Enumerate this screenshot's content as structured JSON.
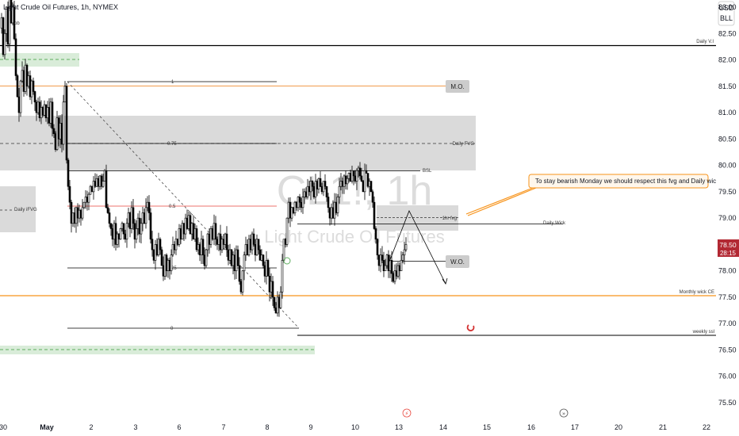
{
  "header": {
    "symbol_title": "Light Crude Oil Futures, 1h, NYMEX"
  },
  "watermark": {
    "ticker": "CL1!, 1h",
    "name": "Light Crude Oil Futures"
  },
  "currency": {
    "line1": "USD",
    "line2": "BLL"
  },
  "price_tag": {
    "price": "78.50",
    "countdown": "28:15",
    "color": "#b22833"
  },
  "colors": {
    "bull": "#ffffff",
    "bear": "#000000",
    "orange": "#f7931a",
    "red": "#e8453c",
    "fvg_gray": "#d4d4d4",
    "green_zone": "#cfe8cf"
  },
  "annotations": {
    "daily_vi": "Daily V.I",
    "mo": "M.O.",
    "daily_fvg": "Daily FVG",
    "bsl": "BSL",
    "daily_ifvg": "Daily iFVG",
    "fvg_1hr": "1hr fvg",
    "daily_wick": "Daily Wick",
    "wo": "W.O.",
    "monthly_wick_ce": "Monthly wick CE",
    "weekly_ssl": "weekly ssl",
    "fib_1": "1",
    "fib_075": "0.75",
    "fib_05": "0.5",
    "fib_025": "0.25",
    "fib_0": "0",
    "top_label": "-ob",
    "note": "To stay bearish Monday we should respect this fvg and Daily wick"
  },
  "chart_data": {
    "type": "candlestick",
    "title": "Light Crude Oil Futures, 1h, NYMEX",
    "y_ticks": [
      "83.00",
      "82.50",
      "82.00",
      "81.50",
      "81.00",
      "80.50",
      "80.00",
      "79.50",
      "79.00",
      "78.50",
      "78.00",
      "77.50",
      "77.00",
      "76.50",
      "76.00",
      "75.50"
    ],
    "x_ticks": [
      "30",
      "May",
      "2",
      "3",
      "6",
      "7",
      "8",
      "9",
      "10",
      "13",
      "14",
      "15",
      "16",
      "17",
      "20",
      "21",
      "22"
    ],
    "ylim": [
      75.3,
      83.3
    ],
    "levels": {
      "daily_vi": 82.27,
      "mo": 81.47,
      "daily_fvg_top": 80.95,
      "daily_fvg_mid": 80.43,
      "daily_fvg_bottom": 79.92,
      "bsl": 79.92,
      "fvg_1hr_top": 79.18,
      "fvg_1hr_mid": 79.03,
      "fvg_1hr_bottom": 78.88,
      "daily_wick": 78.88,
      "wo": 78.15,
      "monthly_wick_ce": 77.53,
      "weekly_ssl": 76.86,
      "fib_1": 81.56,
      "fib_075": 80.4,
      "fib_05": 79.24,
      "fib_025": 78.09,
      "fib_0": 76.93,
      "current_price": 78.5
    },
    "path": [
      [
        0,
        82.6
      ],
      [
        2,
        82.8
      ],
      [
        4,
        82.1
      ],
      [
        6,
        82.5
      ],
      [
        8,
        83.0
      ],
      [
        10,
        82.3
      ],
      [
        12,
        83.2
      ],
      [
        14,
        82.7
      ],
      [
        16,
        83.0
      ],
      [
        18,
        82.4
      ],
      [
        20,
        81.7
      ],
      [
        22,
        81.3
      ],
      [
        24,
        81.0
      ],
      [
        26,
        81.6
      ],
      [
        28,
        81.8
      ],
      [
        30,
        81.4
      ],
      [
        32,
        81.9
      ],
      [
        34,
        81.5
      ],
      [
        36,
        81.7
      ],
      [
        38,
        81.3
      ],
      [
        40,
        81.6
      ],
      [
        42,
        81.4
      ],
      [
        44,
        81.2
      ],
      [
        46,
        81.0
      ],
      [
        48,
        81.2
      ],
      [
        50,
        80.9
      ],
      [
        52,
        81.1
      ],
      [
        54,
        80.95
      ],
      [
        56,
        81.15
      ],
      [
        58,
        80.9
      ],
      [
        60,
        81.1
      ],
      [
        62,
        80.8
      ],
      [
        64,
        81.2
      ],
      [
        66,
        80.7
      ],
      [
        68,
        80.6
      ],
      [
        70,
        80.3
      ],
      [
        72,
        80.9
      ],
      [
        74,
        80.5
      ],
      [
        76,
        80.8
      ],
      [
        78,
        80.4
      ],
      [
        80,
        81.2
      ],
      [
        82,
        81.5
      ],
      [
        84,
        80.1
      ],
      [
        86,
        79.6
      ],
      [
        88,
        79.3
      ],
      [
        90,
        78.9
      ],
      [
        92,
        79.1
      ],
      [
        94,
        78.9
      ],
      [
        96,
        79.2
      ],
      [
        98,
        79.0
      ],
      [
        100,
        79.15
      ],
      [
        102,
        79.0
      ],
      [
        104,
        79.2
      ],
      [
        106,
        79.3
      ],
      [
        108,
        79.4
      ],
      [
        110,
        79.3
      ],
      [
        112,
        79.45
      ],
      [
        114,
        79.6
      ],
      [
        116,
        79.5
      ],
      [
        118,
        79.7
      ],
      [
        120,
        79.6
      ],
      [
        122,
        79.75
      ],
      [
        124,
        79.6
      ],
      [
        126,
        79.8
      ],
      [
        128,
        79.6
      ],
      [
        130,
        79.7
      ],
      [
        132,
        79.9
      ],
      [
        134,
        79.2
      ],
      [
        136,
        79.1
      ],
      [
        138,
        78.9
      ],
      [
        140,
        78.8
      ],
      [
        142,
        78.6
      ],
      [
        144,
        78.9
      ],
      [
        146,
        78.5
      ],
      [
        148,
        78.7
      ],
      [
        150,
        78.6
      ],
      [
        152,
        78.8
      ],
      [
        154,
        78.9
      ],
      [
        156,
        78.7
      ],
      [
        158,
        78.6
      ],
      [
        160,
        78.9
      ],
      [
        162,
        79.1
      ],
      [
        164,
        78.8
      ],
      [
        166,
        79.2
      ],
      [
        168,
        78.9
      ],
      [
        170,
        78.6
      ],
      [
        172,
        78.8
      ],
      [
        174,
        79.0
      ],
      [
        176,
        78.7
      ],
      [
        178,
        78.9
      ],
      [
        180,
        79.1
      ],
      [
        182,
        78.9
      ],
      [
        184,
        79.2
      ],
      [
        186,
        79.3
      ],
      [
        188,
        79.1
      ],
      [
        190,
        78.6
      ],
      [
        192,
        78.4
      ],
      [
        194,
        78.2
      ],
      [
        196,
        78.5
      ],
      [
        198,
        78.3
      ],
      [
        200,
        78.6
      ],
      [
        202,
        78.4
      ],
      [
        204,
        78.1
      ],
      [
        206,
        77.9
      ],
      [
        208,
        78.3
      ],
      [
        210,
        78.0
      ],
      [
        212,
        78.2
      ],
      [
        214,
        78.0
      ],
      [
        216,
        78.3
      ],
      [
        218,
        78.5
      ],
      [
        220,
        78.4
      ],
      [
        222,
        78.6
      ],
      [
        224,
        78.5
      ],
      [
        226,
        78.8
      ],
      [
        228,
        78.6
      ],
      [
        230,
        78.9
      ],
      [
        232,
        78.7
      ],
      [
        234,
        79.0
      ],
      [
        236,
        78.8
      ],
      [
        238,
        79.05
      ],
      [
        240,
        78.7
      ],
      [
        242,
        78.9
      ],
      [
        244,
        78.6
      ],
      [
        246,
        78.8
      ],
      [
        248,
        78.4
      ],
      [
        250,
        78.5
      ],
      [
        252,
        78.3
      ],
      [
        254,
        78.6
      ],
      [
        256,
        78.3
      ],
      [
        258,
        78.1
      ],
      [
        260,
        78.4
      ],
      [
        262,
        78.7
      ],
      [
        264,
        78.5
      ],
      [
        266,
        78.8
      ],
      [
        268,
        78.6
      ],
      [
        270,
        78.9
      ],
      [
        272,
        78.6
      ],
      [
        274,
        78.5
      ],
      [
        276,
        78.7
      ],
      [
        278,
        78.4
      ],
      [
        280,
        78.6
      ],
      [
        282,
        78.5
      ],
      [
        284,
        78.7
      ],
      [
        286,
        78.4
      ],
      [
        288,
        78.2
      ],
      [
        290,
        78.4
      ],
      [
        292,
        78.1
      ],
      [
        294,
        78.3
      ],
      [
        296,
        78.0
      ],
      [
        298,
        78.4
      ],
      [
        300,
        78.1
      ],
      [
        302,
        77.8
      ],
      [
        304,
        77.6
      ],
      [
        306,
        78.0
      ],
      [
        308,
        78.3
      ],
      [
        310,
        78.5
      ],
      [
        312,
        78.3
      ],
      [
        314,
        78.6
      ],
      [
        316,
        78.4
      ],
      [
        318,
        78.7
      ],
      [
        320,
        78.5
      ],
      [
        322,
        78.3
      ],
      [
        324,
        78.6
      ],
      [
        326,
        78.4
      ],
      [
        328,
        78.2
      ],
      [
        330,
        78.3
      ],
      [
        332,
        78.1
      ],
      [
        334,
        77.9
      ],
      [
        336,
        78.2
      ],
      [
        338,
        77.9
      ],
      [
        340,
        77.6
      ],
      [
        342,
        77.8
      ],
      [
        344,
        77.5
      ],
      [
        346,
        77.3
      ],
      [
        348,
        77.2
      ],
      [
        350,
        77.5
      ],
      [
        352,
        77.3
      ],
      [
        354,
        77.6
      ],
      [
        356,
        78.2
      ],
      [
        358,
        78.6
      ],
      [
        360,
        78.5
      ],
      [
        362,
        79.0
      ],
      [
        364,
        79.3
      ],
      [
        366,
        79.0
      ],
      [
        368,
        79.2
      ],
      [
        370,
        79.1
      ],
      [
        372,
        79.3
      ],
      [
        374,
        79.2
      ],
      [
        376,
        79.4
      ],
      [
        378,
        79.3
      ],
      [
        380,
        79.2
      ],
      [
        382,
        79.4
      ],
      [
        384,
        79.5
      ],
      [
        386,
        79.4
      ],
      [
        388,
        79.6
      ],
      [
        390,
        79.5
      ],
      [
        392,
        79.7
      ],
      [
        394,
        79.6
      ],
      [
        396,
        79.4
      ],
      [
        398,
        79.7
      ],
      [
        400,
        79.55
      ],
      [
        402,
        79.75
      ],
      [
        404,
        79.6
      ],
      [
        406,
        79.5
      ],
      [
        408,
        79.7
      ],
      [
        410,
        79.6
      ],
      [
        412,
        79.4
      ],
      [
        414,
        79.2
      ],
      [
        416,
        79.0
      ],
      [
        418,
        79.2
      ],
      [
        420,
        79.0
      ],
      [
        422,
        79.3
      ],
      [
        424,
        79.1
      ],
      [
        426,
        79.4
      ],
      [
        428,
        79.6
      ],
      [
        430,
        79.7
      ],
      [
        432,
        79.6
      ],
      [
        434,
        79.8
      ],
      [
        436,
        79.65
      ],
      [
        438,
        79.75
      ],
      [
        440,
        79.85
      ],
      [
        442,
        79.7
      ],
      [
        444,
        79.9
      ],
      [
        446,
        79.8
      ],
      [
        448,
        79.7
      ],
      [
        450,
        79.9
      ],
      [
        452,
        79.95
      ],
      [
        454,
        79.8
      ],
      [
        456,
        79.7
      ],
      [
        458,
        79.5
      ],
      [
        460,
        79.9
      ],
      [
        462,
        79.85
      ],
      [
        464,
        79.6
      ],
      [
        466,
        79.7
      ],
      [
        468,
        79.5
      ],
      [
        470,
        79.3
      ],
      [
        472,
        78.8
      ],
      [
        474,
        78.6
      ],
      [
        476,
        78.3
      ],
      [
        478,
        78.1
      ],
      [
        480,
        78.3
      ],
      [
        482,
        78.2
      ],
      [
        484,
        78.0
      ],
      [
        486,
        78.1
      ],
      [
        488,
        78.3
      ],
      [
        490,
        78.0
      ],
      [
        492,
        78.2
      ],
      [
        494,
        77.95
      ],
      [
        496,
        77.8
      ],
      [
        498,
        78.0
      ],
      [
        500,
        77.9
      ],
      [
        502,
        78.1
      ],
      [
        504,
        78.0
      ],
      [
        506,
        78.2
      ],
      [
        508,
        78.3
      ],
      [
        510,
        78.4
      ],
      [
        512,
        78.5
      ]
    ]
  }
}
